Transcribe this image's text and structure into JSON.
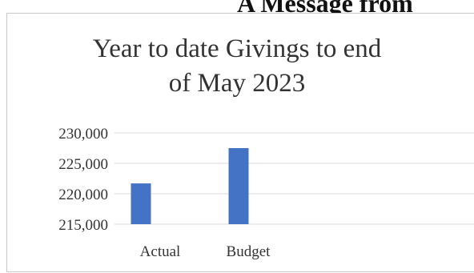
{
  "heading_fragment": "A Message from",
  "chart_data": {
    "type": "bar",
    "title_lines": [
      "Year to date Givings to end",
      "of May 2023"
    ],
    "categories": [
      "Actual",
      "Budget"
    ],
    "values": [
      221700,
      227500
    ],
    "ylim": [
      215000,
      230000
    ],
    "yticks": [
      215000,
      220000,
      225000,
      230000
    ],
    "ytick_labels": [
      "215,000",
      "220,000",
      "225,000",
      "230,000"
    ],
    "grid": true,
    "bar_color": "#4472c4",
    "grid_color": "#d9d9d9",
    "xlabel": "",
    "ylabel": ""
  }
}
